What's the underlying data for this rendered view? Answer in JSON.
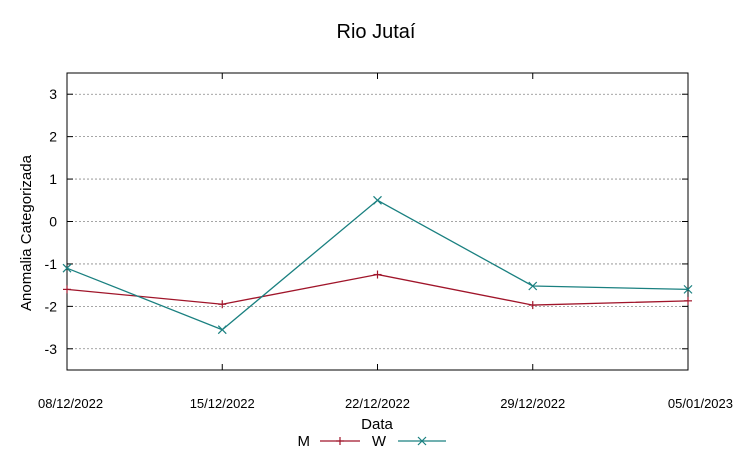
{
  "chart_data": {
    "type": "line",
    "title": "Rio Jutaí",
    "xlabel": "Data",
    "ylabel": "Anomalia Categorizada",
    "categories": [
      "08/12/2022",
      "15/12/2022",
      "22/12/2022",
      "29/12/2022",
      "05/01/2023"
    ],
    "ylim": [
      -3.5,
      3.5
    ],
    "yticks": [
      "3",
      "2",
      "1",
      "0",
      "-1",
      "-2",
      "-3"
    ],
    "grid": true,
    "legend_position": "bottom-center",
    "series": [
      {
        "name": "M",
        "marker": "plus",
        "color": "#a0152a",
        "values": [
          -1.6,
          -1.95,
          -1.25,
          -1.97,
          -1.87
        ]
      },
      {
        "name": "W",
        "marker": "cross",
        "color": "#1a8080",
        "values": [
          -1.1,
          -2.55,
          0.5,
          -1.52,
          -1.6
        ]
      }
    ]
  }
}
